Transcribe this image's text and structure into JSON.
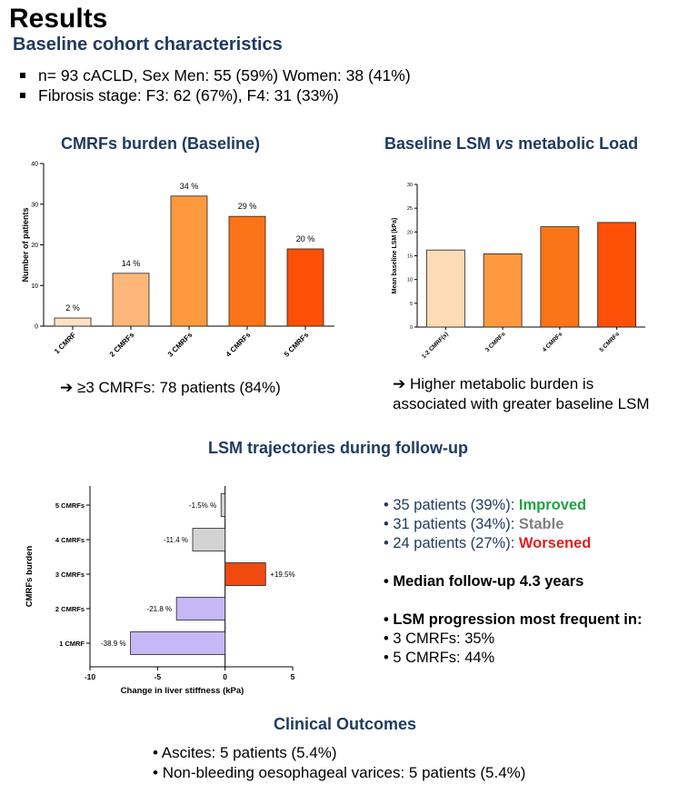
{
  "header": {
    "title": "Results",
    "subtitle": "Baseline cohort characteristics"
  },
  "cohort_bullets": [
    "n= 93 cACLD, Sex  Men: 55 (59%) Women: 38 (41%)",
    "Fibrosis stage: F3: 62 (67%), F4: 31 (33%)"
  ],
  "chart1_section_title": "CMRFs burden (Baseline)",
  "chart2_section_title_a": "Baseline LSM ",
  "chart2_section_title_b": "vs",
  "chart2_section_title_c": " metabolic Load",
  "chart1_takeaway": {
    "arrow": "➔",
    "text": "≥3 CMRFs: 78 patients (84%)"
  },
  "chart2_takeaway": {
    "arrow": "➔",
    "line1": "Higher metabolic burden is",
    "line2": "associated with greater baseline LSM"
  },
  "chart3_section_title": "LSM trajectories during follow-up",
  "trajectory_list": {
    "improved": {
      "prefix": "35 patients (39%): ",
      "label": "Improved"
    },
    "stable": {
      "prefix": "31 patients (34%): ",
      "label": "Stable"
    },
    "worsened": {
      "prefix": "24 patients (27%): ",
      "label": "Worsened"
    },
    "followup": "Median follow-up 4.3 years",
    "progression_title": "LSM progression most frequent in:",
    "progression_items": [
      "3 CMRFs: 35%",
      "5 CMRFs: 44%"
    ]
  },
  "outcomes": {
    "title": "Clinical Outcomes",
    "items": [
      "Ascites: 5 patients (5.4%)",
      "Non-bleeding oesophageal varices: 5 patients (5.4%)"
    ]
  },
  "colors": {
    "navy": "#1f3a5f",
    "improved": "#1fa345",
    "stable": "#7f7f7f",
    "worsened": "#e02020"
  },
  "chart_data": [
    {
      "type": "bar",
      "categories": [
        "1 CMRF",
        "2 CMRFs",
        "3 CMRFs",
        "4 CMRFs",
        "5 CMRFs"
      ],
      "values": [
        2,
        13,
        32,
        27,
        19
      ],
      "data_labels": [
        "2 %",
        "14 %",
        "34 %",
        "29 %",
        "20 %"
      ],
      "colors": [
        "#fde2c4",
        "#fdb779",
        "#fd9a3f",
        "#fb7417",
        "#fc5007"
      ],
      "ylabel": "Number of patients",
      "ylim": [
        0,
        40
      ],
      "yticks": [
        0,
        10,
        20,
        30,
        40
      ]
    },
    {
      "type": "bar",
      "categories": [
        "1-2 CMRF(s)",
        "3 CMRFs",
        "4 CMRFs",
        "5 CMRFs"
      ],
      "values": [
        16.2,
        15.4,
        21.1,
        22.0
      ],
      "colors": [
        "#fddcb5",
        "#fd9a3f",
        "#fb7417",
        "#fc5007"
      ],
      "ylabel": "Mean baseline LSM (kPa)",
      "ylim": [
        0,
        30
      ],
      "yticks": [
        0,
        5,
        10,
        15,
        20,
        25,
        30
      ]
    },
    {
      "type": "bar",
      "orientation": "horizontal",
      "categories": [
        "5 CMRFs",
        "4 CMRFs",
        "3 CMRFs",
        "2 CMRFs",
        "1 CMRF"
      ],
      "values": [
        -0.3,
        -2.4,
        3.0,
        -3.6,
        -7.0
      ],
      "data_labels": [
        "-1.5% %",
        "-11.4 %",
        "+19.5%",
        "-21.8 %",
        "-38.9 %"
      ],
      "colors": [
        "#d3d3d3",
        "#d3d3d3",
        "#f04a10",
        "#c5b8f4",
        "#c5b8f4"
      ],
      "xlabel": "Change in liver stiffness (kPa)",
      "ylabel": "CMRFs burden",
      "xlim": [
        -10,
        5
      ],
      "xticks": [
        -10,
        -5,
        0,
        5
      ]
    }
  ]
}
